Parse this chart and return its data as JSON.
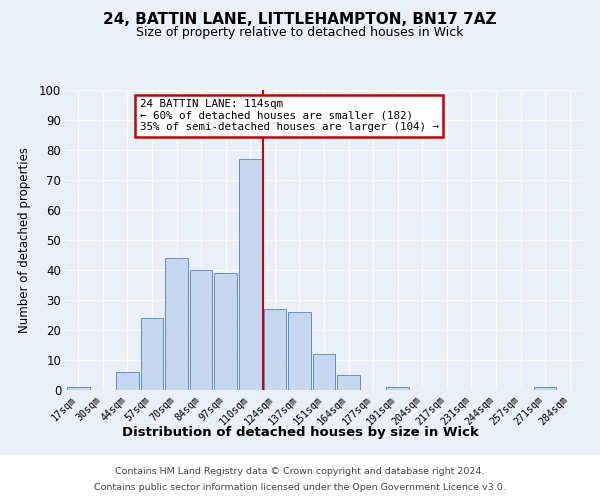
{
  "title1": "24, BATTIN LANE, LITTLEHAMPTON, BN17 7AZ",
  "title2": "Size of property relative to detached houses in Wick",
  "xlabel": "Distribution of detached houses by size in Wick",
  "ylabel": "Number of detached properties",
  "bar_labels": [
    "17sqm",
    "30sqm",
    "44sqm",
    "57sqm",
    "70sqm",
    "84sqm",
    "97sqm",
    "110sqm",
    "124sqm",
    "137sqm",
    "151sqm",
    "164sqm",
    "177sqm",
    "191sqm",
    "204sqm",
    "217sqm",
    "231sqm",
    "244sqm",
    "257sqm",
    "271sqm",
    "284sqm"
  ],
  "bar_values": [
    1,
    0,
    6,
    24,
    44,
    40,
    39,
    77,
    27,
    26,
    12,
    5,
    0,
    1,
    0,
    0,
    0,
    0,
    0,
    1,
    0
  ],
  "bar_color": "#c6d8f0",
  "bar_edge_color": "#6090c8",
  "vline_x_idx": 7.5,
  "annotation_title": "24 BATTIN LANE: 114sqm",
  "annotation_line1": "← 60% of detached houses are smaller (182)",
  "annotation_line2": "35% of semi-detached houses are larger (104) →",
  "annotation_box_color": "#ffffff",
  "annotation_box_edge_color": "#cc0000",
  "vline_color": "#cc0000",
  "ylim": [
    0,
    100
  ],
  "yticks": [
    0,
    10,
    20,
    30,
    40,
    50,
    60,
    70,
    80,
    90,
    100
  ],
  "footer1": "Contains HM Land Registry data © Crown copyright and database right 2024.",
  "footer2": "Contains public sector information licensed under the Open Government Licence v3.0.",
  "bg_color": "#eaf0f8",
  "plot_bg_color": "#eaf0f8",
  "footer_bg": "#ffffff"
}
